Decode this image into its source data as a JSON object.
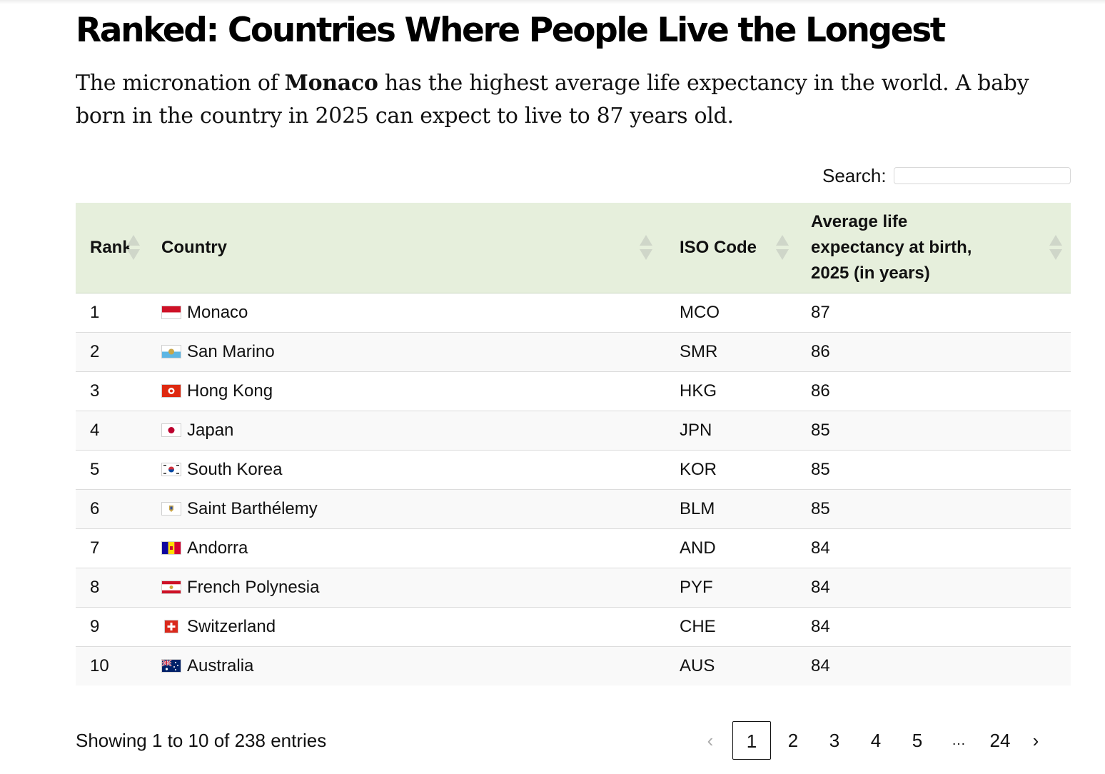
{
  "title": "Ranked: Countries Where People Live the Longest",
  "subtitle": {
    "before": "The micronation of ",
    "bold": "Monaco",
    "after": " has the highest average life expectancy in the world. A baby born in the country in 2025 can expect to live to 87 years old."
  },
  "search": {
    "label": "Search:",
    "value": ""
  },
  "table": {
    "headers": {
      "rank": "Rank",
      "country": "Country",
      "iso": "ISO Code",
      "life": "Average life expectancy at birth, 2025 (in years)"
    },
    "rows": [
      {
        "rank": "1",
        "country": "Monaco",
        "flag": "monaco-flag-icon",
        "iso": "MCO",
        "value": "87"
      },
      {
        "rank": "2",
        "country": "San Marino",
        "flag": "san-marino-flag-icon",
        "iso": "SMR",
        "value": "86"
      },
      {
        "rank": "3",
        "country": "Hong Kong",
        "flag": "hong-kong-flag-icon",
        "iso": "HKG",
        "value": "86"
      },
      {
        "rank": "4",
        "country": "Japan",
        "flag": "japan-flag-icon",
        "iso": "JPN",
        "value": "85"
      },
      {
        "rank": "5",
        "country": "South Korea",
        "flag": "south-korea-flag-icon",
        "iso": "KOR",
        "value": "85"
      },
      {
        "rank": "6",
        "country": "Saint Barthélemy",
        "flag": "saint-barthelemy-flag-icon",
        "iso": "BLM",
        "value": "85"
      },
      {
        "rank": "7",
        "country": "Andorra",
        "flag": "andorra-flag-icon",
        "iso": "AND",
        "value": "84"
      },
      {
        "rank": "8",
        "country": "French Polynesia",
        "flag": "french-polynesia-flag-icon",
        "iso": "PYF",
        "value": "84"
      },
      {
        "rank": "9",
        "country": "Switzerland",
        "flag": "switzerland-flag-icon",
        "iso": "CHE",
        "value": "84"
      },
      {
        "rank": "10",
        "country": "Australia",
        "flag": "australia-flag-icon",
        "iso": "AUS",
        "value": "84"
      }
    ]
  },
  "footer": {
    "info": "Showing 1 to 10 of 238 entries",
    "pagination": {
      "prev": "‹",
      "pages": [
        "1",
        "2",
        "3",
        "4",
        "5"
      ],
      "ellipsis": "…",
      "last": "24",
      "next": "›",
      "current": "1"
    }
  },
  "colors": {
    "header_bg": "#e6efdc",
    "stripe_bg": "#f9f9f9",
    "sort_arrow": "#cfd6c9"
  }
}
